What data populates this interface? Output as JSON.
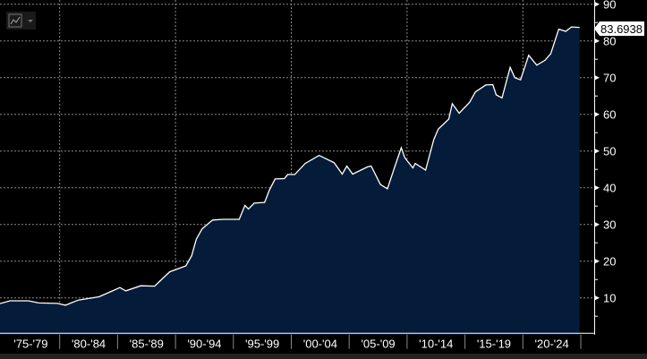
{
  "chart_data": {
    "type": "area",
    "title": "",
    "xlabel": "",
    "ylabel": "",
    "categories": [
      "'75-'79",
      "'80-'84",
      "'85-'89",
      "'90-'94",
      "'95-'99",
      "'00-'04",
      "'05-'09",
      "'10-'14",
      "'15-'19",
      "'20-'24"
    ],
    "xlim": [
      1975,
      2025
    ],
    "ylim": [
      0,
      90
    ],
    "yticks": [
      10,
      20,
      30,
      40,
      50,
      60,
      70,
      80,
      90
    ],
    "grid": true,
    "last_value_label": "83.6938",
    "colors": {
      "line": "#ffffff",
      "fill": "#041c3a",
      "grid": "#8a8a8a",
      "background": "#000000"
    },
    "series": [
      {
        "x": [
          1974.8,
          1975.7,
          1977.3,
          1978.2,
          1979.8,
          1980.5,
          1981.6,
          1983.4,
          1985.2,
          1985.7,
          1987,
          1988.2,
          1989.5,
          1990.9,
          1991.4,
          1991.8,
          1992.3,
          1993.2,
          1994.1,
          1995.5,
          1996,
          1996.3,
          1996.8,
          1997.7,
          1998.1,
          1998.6,
          1999.4,
          1999.7,
          2000.3,
          2001.2,
          2002.4,
          2003.7,
          2004.4,
          2004.8,
          2005.3,
          2006.6,
          2006.9,
          2007.7,
          2008.3,
          2008.9,
          2009.5,
          2009.8,
          2010.5,
          2010.7,
          2011.6,
          2012.3,
          2012.7,
          2013.6,
          2013.9,
          2014.5,
          2015.4,
          2015.9,
          2016.8,
          2017.4,
          2017.7,
          2018.2,
          2018.9,
          2019.3,
          2019.8,
          2020.5,
          2021.2,
          2021.9,
          2022.4,
          2023.1,
          2023.7,
          2024.2,
          2024.9
        ],
        "y": [
          8.4,
          9.2,
          9.2,
          8.6,
          8.5,
          8.0,
          9.4,
          10.3,
          12.8,
          11.9,
          13.3,
          13.2,
          17.1,
          18.7,
          21.5,
          26,
          28.8,
          31.2,
          31.4,
          31.4,
          35.2,
          34.2,
          35.8,
          36,
          39.3,
          42.4,
          42.5,
          43.6,
          43.6,
          46.6,
          48.8,
          46.8,
          43.7,
          45.9,
          43.7,
          45.7,
          45.9,
          40.9,
          39.7,
          45.4,
          50.9,
          48.2,
          45.4,
          46.6,
          44.8,
          53.1,
          56,
          58.7,
          62.9,
          60.3,
          63.3,
          66.1,
          68,
          68.1,
          65.3,
          64.5,
          72.8,
          70,
          69.4,
          76.1,
          73.4,
          74.7,
          76.5,
          83.2,
          82.6,
          83.8,
          83.6938
        ]
      }
    ]
  },
  "toolbar": {
    "chart_type_icon": "line-chart-icon",
    "dropdown_icon": "caret-down-icon"
  }
}
